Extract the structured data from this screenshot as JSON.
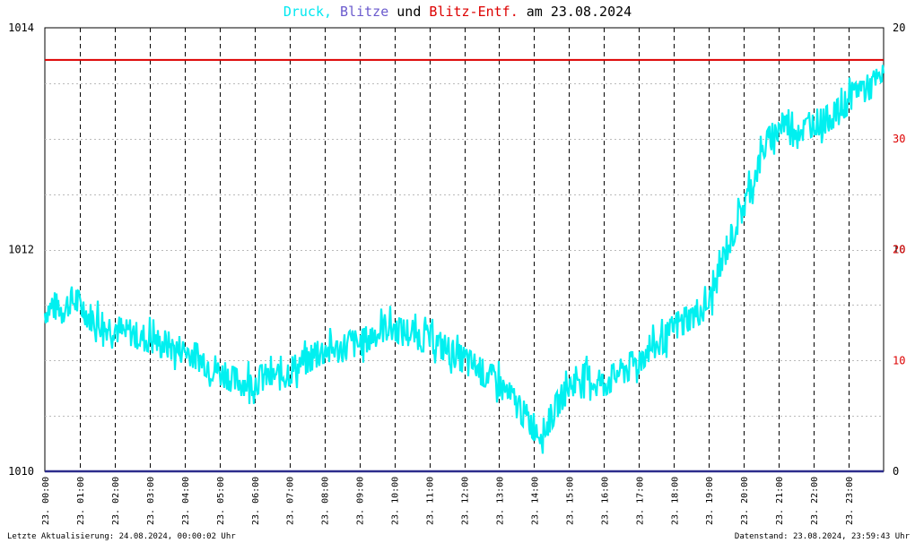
{
  "title": {
    "druck": "Druck,",
    "blitze": "Blitze",
    "und": "und",
    "entf": "Blitz-Entf.",
    "date_prefix": "am",
    "date": "23.08.2024"
  },
  "footer": {
    "left": "Letzte Aktualisierung: 24.08.2024, 00:00:02 Uhr",
    "right": "Datenstand: 23.08.2024, 23:59:43 Uhr"
  },
  "colors": {
    "pressure": "#00f0f0",
    "blitze": "#6a5acd",
    "entf": "#dd0000",
    "baseline": "#2c2c8c",
    "grid": "#000000"
  },
  "chart_data": {
    "type": "line",
    "title": "Druck, Blitze und Blitz-Entf. am 23.08.2024",
    "x_range": [
      0,
      24
    ],
    "x_ticks": [
      "23. 00:00",
      "23. 01:00",
      "23. 02:00",
      "23. 03:00",
      "23. 04:00",
      "23. 05:00",
      "23. 06:00",
      "23. 07:00",
      "23. 08:00",
      "23. 09:00",
      "23. 10:00",
      "23. 11:00",
      "23. 12:00",
      "23. 13:00",
      "23. 14:00",
      "23. 15:00",
      "23. 16:00",
      "23. 17:00",
      "23. 18:00",
      "23. 19:00",
      "23. 20:00",
      "23. 21:00",
      "23. 22:00",
      "23. 23:00"
    ],
    "y_left": {
      "range": [
        1010,
        1014
      ],
      "ticks": [
        "1010",
        "1012",
        "1014"
      ]
    },
    "y_right_blitze": {
      "range": [
        0,
        20
      ],
      "ticks": [
        "0",
        "10",
        "20"
      ]
    },
    "y_right_entf": {
      "range": [
        0,
        40
      ],
      "ticks": [
        "10",
        "20",
        "30"
      ]
    },
    "grid": true,
    "series": [
      {
        "name": "Druck",
        "axis": "left",
        "x": [
          0,
          0.25,
          0.5,
          0.75,
          1,
          1.25,
          1.5,
          1.75,
          2,
          2.25,
          2.5,
          2.75,
          3,
          3.25,
          3.5,
          3.75,
          4,
          4.25,
          4.5,
          4.75,
          5,
          5.25,
          5.5,
          5.75,
          6,
          6.25,
          6.5,
          6.75,
          7,
          7.25,
          7.5,
          7.75,
          8,
          8.25,
          8.5,
          8.75,
          9,
          9.25,
          9.5,
          9.75,
          10,
          10.25,
          10.5,
          10.75,
          11,
          11.25,
          11.5,
          11.75,
          12,
          12.25,
          12.5,
          12.75,
          13,
          13.25,
          13.5,
          13.75,
          14,
          14.25,
          14.5,
          14.75,
          15,
          15.25,
          15.5,
          15.75,
          16,
          16.25,
          16.5,
          16.75,
          17,
          17.25,
          17.5,
          17.75,
          18,
          18.25,
          18.5,
          18.75,
          19,
          19.25,
          19.5,
          19.75,
          20,
          20.25,
          20.5,
          20.75,
          21,
          21.25,
          21.5,
          21.75,
          22,
          22.25,
          22.5,
          22.75,
          23,
          23.25,
          23.5,
          23.75,
          24
        ],
        "y": [
          1011.45,
          1011.5,
          1011.45,
          1011.55,
          1011.5,
          1011.4,
          1011.35,
          1011.3,
          1011.3,
          1011.25,
          1011.25,
          1011.2,
          1011.2,
          1011.15,
          1011.15,
          1011.1,
          1011.1,
          1011.05,
          1011.0,
          1010.95,
          1010.9,
          1010.85,
          1010.8,
          1010.8,
          1010.8,
          1010.85,
          1010.85,
          1010.85,
          1010.9,
          1010.95,
          1011.0,
          1011.05,
          1011.1,
          1011.1,
          1011.1,
          1011.15,
          1011.15,
          1011.2,
          1011.25,
          1011.3,
          1011.3,
          1011.25,
          1011.25,
          1011.2,
          1011.2,
          1011.15,
          1011.1,
          1011.05,
          1011.0,
          1010.95,
          1010.9,
          1010.85,
          1010.8,
          1010.7,
          1010.6,
          1010.5,
          1010.4,
          1010.35,
          1010.5,
          1010.65,
          1010.75,
          1010.85,
          1010.85,
          1010.8,
          1010.8,
          1010.85,
          1010.9,
          1010.95,
          1011.0,
          1011.1,
          1011.15,
          1011.2,
          1011.3,
          1011.35,
          1011.4,
          1011.45,
          1011.5,
          1011.75,
          1012.0,
          1012.2,
          1012.4,
          1012.6,
          1012.85,
          1013.0,
          1013.1,
          1013.15,
          1013.1,
          1013.1,
          1013.15,
          1013.15,
          1013.2,
          1013.25,
          1013.35,
          1013.45,
          1013.45,
          1013.5,
          1013.55
        ]
      },
      {
        "name": "Blitze",
        "axis": "right",
        "x": [
          0,
          24
        ],
        "y": [
          0,
          0
        ]
      },
      {
        "name": "Blitz-Entf.",
        "axis": "right",
        "x": [
          0,
          24
        ],
        "y": [
          37.1,
          37.1
        ]
      }
    ]
  }
}
